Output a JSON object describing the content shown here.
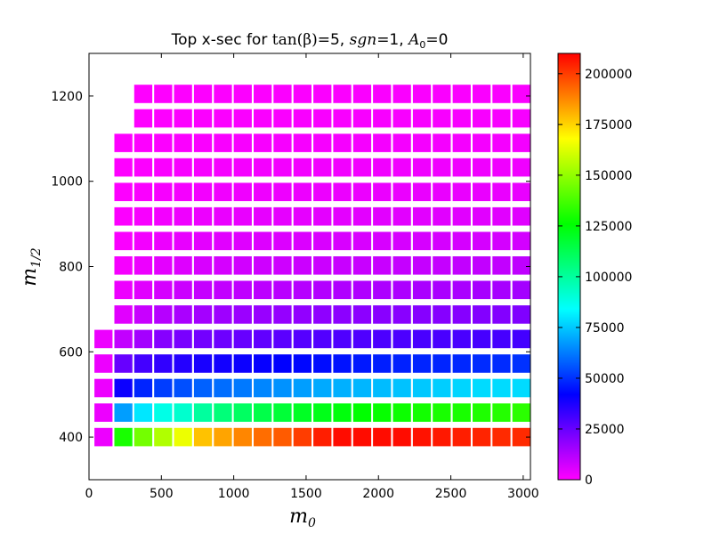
{
  "chart_data": {
    "type": "heatmap",
    "title": "Top x-sec for tan(β)=5, sgn=1, A₀=0",
    "title_parts": {
      "prefix": "Top x-sec for ",
      "tan": "tan",
      "beta": "(β)",
      "tan_value": "=5, ",
      "sgn": "sgn",
      "sgn_value": "=1, ",
      "a": "A",
      "a_sub": "0",
      "a_value": "=0"
    },
    "xlabel": "m",
    "xlabel_sub": "0",
    "ylabel": "m",
    "ylabel_sub": "1/2",
    "xlim": [
      0,
      3050
    ],
    "ylim": [
      300,
      1300
    ],
    "x_ticks": [
      "0",
      "500",
      "1000",
      "1500",
      "2000",
      "2500",
      "3000"
    ],
    "y_ticks": [
      "400",
      "600",
      "800",
      "1000",
      "1200"
    ],
    "colorbar": {
      "min": 0,
      "max": 210000,
      "ticks": [
        "0",
        "25000",
        "50000",
        "75000",
        "100000",
        "125000",
        "150000",
        "175000",
        "200000"
      ],
      "colormap": "gist_rainbow_r"
    },
    "grid": false,
    "cell_width": 125,
    "cell_height": 43,
    "x": [
      100,
      237.5,
      375,
      512.5,
      650,
      787.5,
      925,
      1062.5,
      1200,
      1337.5,
      1475,
      1612.5,
      1750,
      1887.5,
      2025,
      2162.5,
      2300,
      2437.5,
      2575,
      2712.5,
      2850,
      2987.5
    ],
    "y": [
      400,
      457.5,
      515,
      572.5,
      630,
      687.5,
      745,
      802.5,
      860,
      917.5,
      975,
      1032.5,
      1090,
      1147.5,
      1205
    ],
    "z": [
      [
        3000,
        130000,
        145000,
        155000,
        165000,
        178000,
        183000,
        188000,
        192000,
        195000,
        200000,
        205000,
        208000,
        208000,
        208000,
        208000,
        207000,
        206000,
        205000,
        204000,
        203000,
        203000
      ],
      [
        3000,
        68000,
        80000,
        88000,
        92000,
        100000,
        106000,
        110000,
        114000,
        117000,
        120000,
        122000,
        124000,
        126000,
        127000,
        128000,
        129000,
        130000,
        130000,
        131000,
        132000,
        133000
      ],
      [
        3000,
        40000,
        48000,
        52000,
        55000,
        58000,
        60000,
        62000,
        64000,
        66000,
        68000,
        70000,
        71000,
        72000,
        73000,
        74000,
        75000,
        76000,
        77000,
        78000,
        78000,
        78000
      ],
      [
        3000,
        25000,
        31000,
        34000,
        36000,
        38000,
        39000,
        40000,
        41000,
        42000,
        43000,
        44000,
        45000,
        46000,
        47000,
        47500,
        48000,
        48000,
        48500,
        49000,
        49000,
        50000
      ],
      [
        3000,
        10000,
        15000,
        20000,
        22000,
        23000,
        24000,
        25000,
        26000,
        27000,
        28000,
        28500,
        29000,
        29000,
        29500,
        29500,
        30000,
        30000,
        30000,
        30500,
        30500,
        31000
      ],
      [
        null,
        5000,
        9000,
        12000,
        14000,
        15000,
        16000,
        16500,
        17000,
        17500,
        18000,
        18500,
        19000,
        19000,
        19500,
        19500,
        20000,
        20000,
        20000,
        20500,
        20500,
        21000
      ],
      [
        null,
        3000,
        5000,
        7000,
        8500,
        9500,
        10000,
        10500,
        11000,
        11500,
        12000,
        12500,
        13000,
        13000,
        13500,
        13500,
        14000,
        14000,
        14000,
        14500,
        14500,
        15000
      ],
      [
        null,
        1500,
        3000,
        4500,
        5500,
        6500,
        7000,
        7500,
        8000,
        8000,
        8500,
        8500,
        9000,
        9000,
        9000,
        9500,
        9500,
        9500,
        10000,
        10000,
        10000,
        10500
      ],
      [
        null,
        800,
        2000,
        3000,
        3800,
        4500,
        5000,
        5300,
        5600,
        5800,
        6000,
        6200,
        6400,
        6500,
        6600,
        6700,
        6800,
        6900,
        7000,
        7000,
        7100,
        7200
      ],
      [
        null,
        500,
        1200,
        2000,
        2600,
        3000,
        3400,
        3700,
        3900,
        4100,
        4200,
        4400,
        4500,
        4600,
        4700,
        4800,
        4800,
        4900,
        5000,
        5000,
        5000,
        5100
      ],
      [
        null,
        300,
        800,
        1300,
        1700,
        2000,
        2300,
        2500,
        2700,
        2800,
        2900,
        3000,
        3100,
        3200,
        3300,
        3300,
        3400,
        3400,
        3500,
        3500,
        3500,
        3600
      ],
      [
        null,
        200,
        500,
        800,
        1100,
        1300,
        1500,
        1700,
        1800,
        1900,
        2000,
        2100,
        2200,
        2200,
        2300,
        2300,
        2400,
        2400,
        2400,
        2500,
        2500,
        2500
      ],
      [
        null,
        100,
        300,
        500,
        700,
        900,
        1000,
        1100,
        1200,
        1300,
        1400,
        1400,
        1500,
        1500,
        1600,
        1600,
        1600,
        1700,
        1700,
        1700,
        1700,
        1800
      ],
      [
        null,
        null,
        200,
        300,
        450,
        600,
        700,
        800,
        850,
        900,
        950,
        1000,
        1050,
        1100,
        1100,
        1150,
        1150,
        1200,
        1200,
        1200,
        1200,
        1250
      ],
      [
        null,
        null,
        100,
        200,
        300,
        400,
        450,
        500,
        550,
        600,
        650,
        700,
        700,
        750,
        750,
        800,
        800,
        800,
        850,
        850,
        850,
        900
      ]
    ]
  }
}
